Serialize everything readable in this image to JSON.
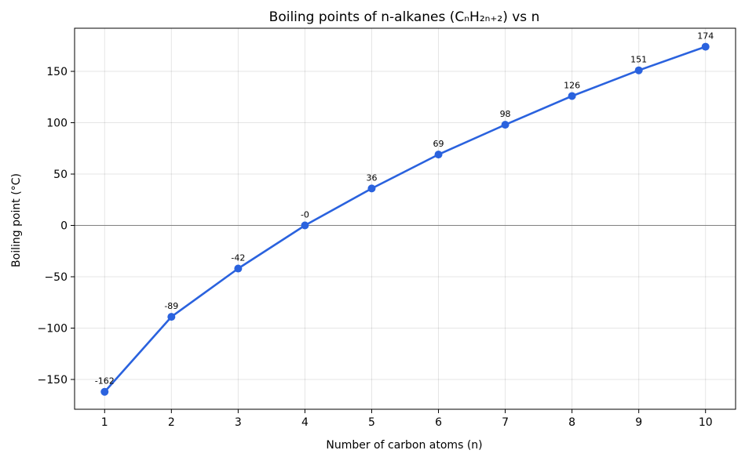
{
  "chart_data": {
    "type": "line",
    "title": "Boiling points of n-alkanes (CₙH₂ₙ₊₂) vs n",
    "xlabel": "Number of carbon atoms (n)",
    "ylabel": "Boiling point (°C)",
    "x": [
      1,
      2,
      3,
      4,
      5,
      6,
      7,
      8,
      9,
      10
    ],
    "xlim": [
      0.55,
      10.45
    ],
    "ylim": [
      -179,
      192
    ],
    "xticks": [
      "1",
      "2",
      "3",
      "4",
      "5",
      "6",
      "7",
      "8",
      "9",
      "10"
    ],
    "yticks": [
      -150,
      -100,
      -50,
      0,
      50,
      100,
      150
    ],
    "ytick_labels": [
      "−150",
      "−100",
      "−50",
      "0",
      "50",
      "100",
      "150"
    ],
    "grid": true,
    "zero_line": true,
    "series": [
      {
        "color": "#2a62de",
        "values": [
          -162,
          -89,
          -42,
          0,
          36,
          69,
          98,
          126,
          151,
          174
        ],
        "labels": [
          "-162",
          "-89",
          "-42",
          "-0",
          "36",
          "69",
          "98",
          "126",
          "151",
          "174"
        ]
      }
    ]
  }
}
